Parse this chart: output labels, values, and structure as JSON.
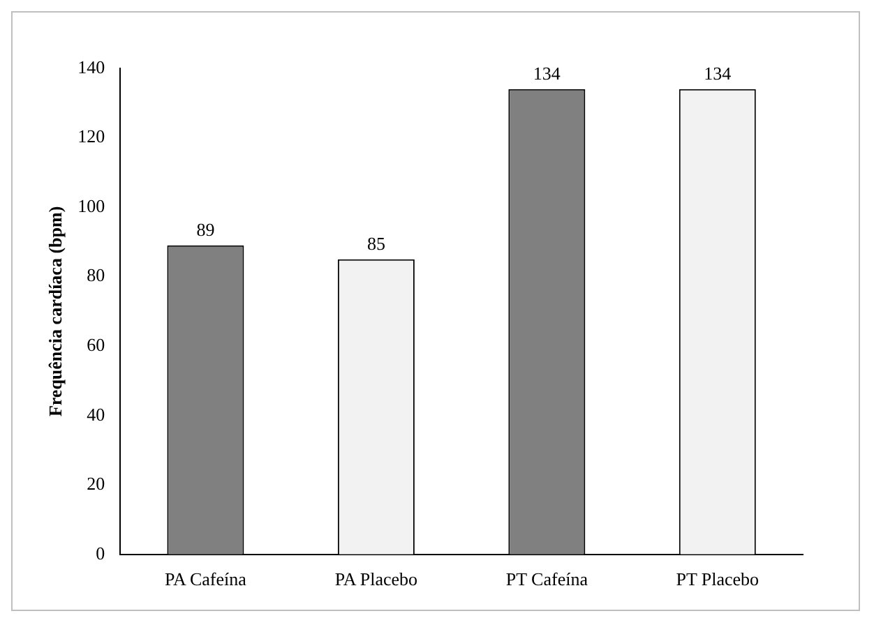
{
  "chart_data": {
    "type": "bar",
    "ylabel": "Frequência cardíaca (bpm)",
    "categories": [
      "PA Cafeína",
      "PA Placebo",
      "PT Cafeína",
      "PT Placebo"
    ],
    "values": [
      89,
      85,
      134,
      134
    ],
    "colors": [
      "#808080",
      "#f2f2f2",
      "#808080",
      "#f2f2f2"
    ],
    "ylim": [
      0,
      140
    ],
    "yticks": [
      0,
      20,
      40,
      60,
      80,
      100,
      120,
      140
    ],
    "grid": false,
    "legend": false,
    "data_labels": true
  }
}
